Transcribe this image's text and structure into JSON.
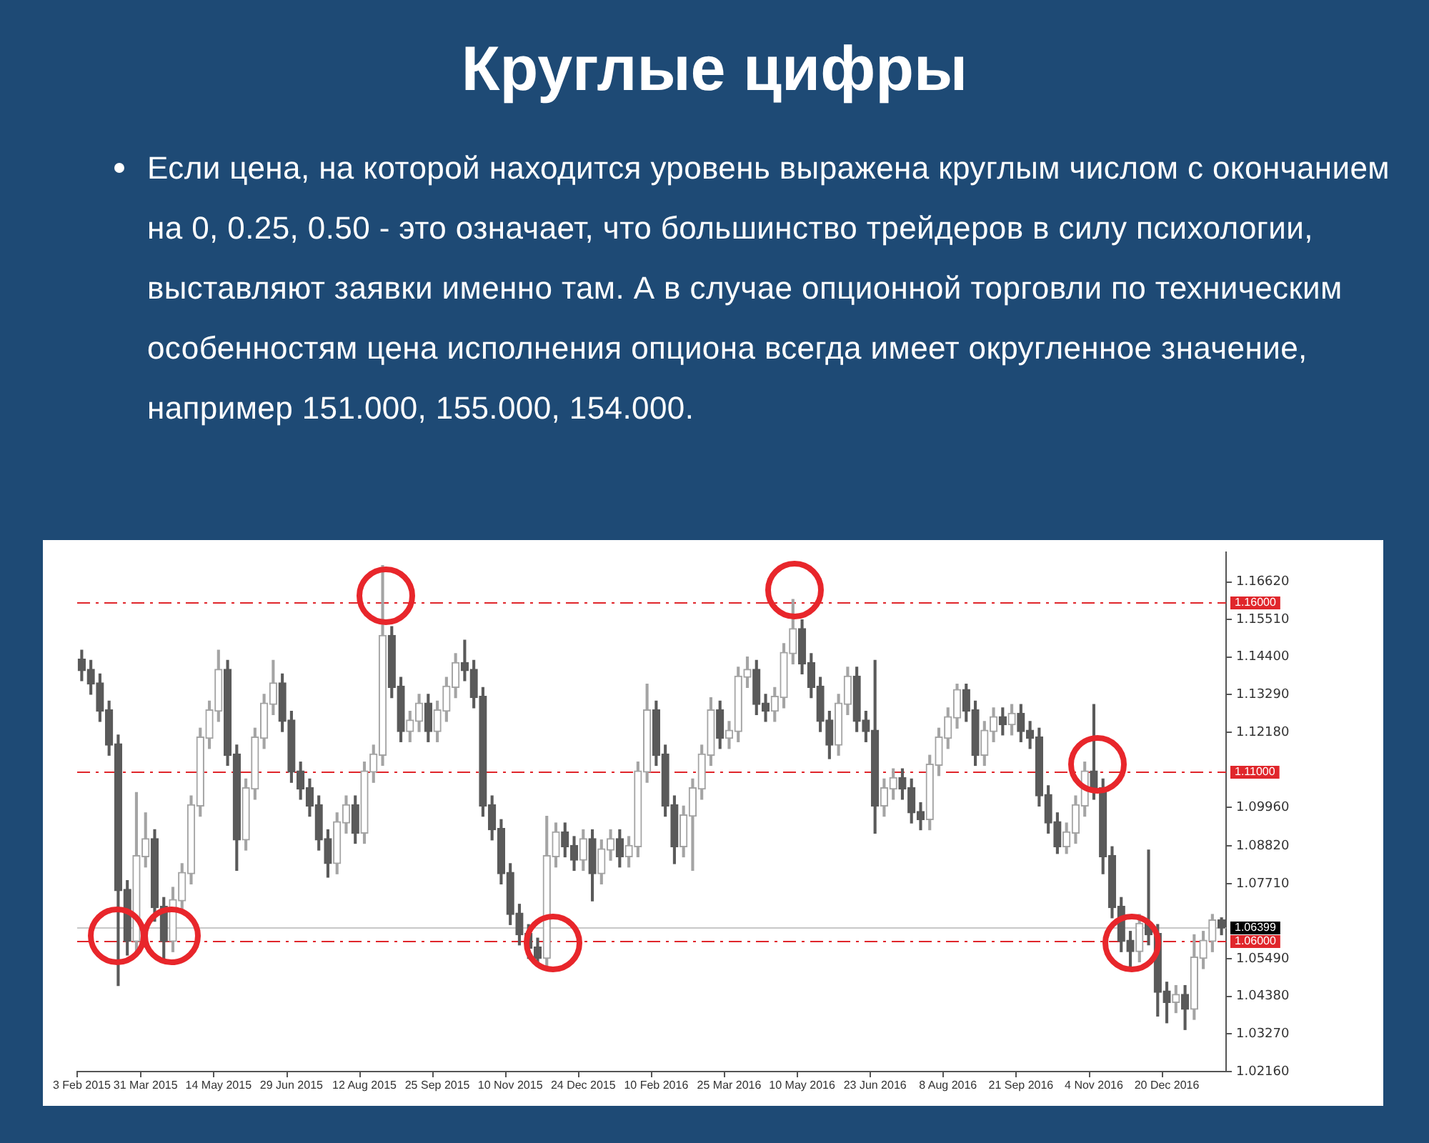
{
  "chart_data": {
    "type": "candlestick",
    "title": "Круглые цифры",
    "subtitle": "Если цена, на которой находится уровень выражена круглым числом с окончанием на 0, 0.25, 0.50 - это означает, что большинство трейдеров в силу психологии, выставляют заявки именно там. А в случае опционной торговли по техническим особенностям цена исполнения опциона всегда имеет округленное значение, например 151.000, 155.000, 154.000.",
    "colors": [
      "#5a5a5a",
      "#5a5a5a",
      "#5a5a5a",
      "#5a5a5a",
      "#5a5a5a",
      "#5a5a5a",
      "#a4a4a4",
      "#a4a4a4",
      "#5a5a5a",
      "#5a5a5a",
      "#a4a4a4",
      "#a4a4a4",
      "#a4a4a4",
      "#a4a4a4",
      "#a4a4a4",
      "#a4a4a4",
      "#5a5a5a",
      "#5a5a5a",
      "#a4a4a4",
      "#a4a4a4",
      "#a4a4a4",
      "#a4a4a4",
      "#5a5a5a",
      "#5a5a5a",
      "#5a5a5a",
      "#5a5a5a",
      "#5a5a5a",
      "#5a5a5a",
      "#a4a4a4",
      "#a4a4a4",
      "#5a5a5a",
      "#a4a4a4",
      "#a4a4a4",
      "#a4a4a4",
      "#5a5a5a",
      "#5a5a5a",
      "#a4a4a4",
      "#a4a4a4",
      "#5a5a5a",
      "#a4a4a4",
      "#a4a4a4",
      "#a4a4a4",
      "#5a5a5a",
      "#5a5a5a",
      "#5a5a5a",
      "#5a5a5a",
      "#5a5a5a",
      "#5a5a5a",
      "#5a5a5a",
      "#5a5a5a",
      "#5a5a5a",
      "#a4a4a4",
      "#a4a4a4",
      "#5a5a5a",
      "#5a5a5a",
      "#a4a4a4",
      "#5a5a5a",
      "#a4a4a4",
      "#a4a4a4",
      "#5a5a5a",
      "#a4a4a4",
      "#a4a4a4",
      "#a4a4a4",
      "#5a5a5a",
      "#5a5a5a",
      "#5a5a5a",
      "#a4a4a4",
      "#a4a4a4",
      "#a4a4a4",
      "#a4a4a4",
      "#5a5a5a",
      "#a4a4a4",
      "#a4a4a4",
      "#a4a4a4",
      "#5a5a5a",
      "#5a5a5a",
      "#a4a4a4",
      "#a4a4a4",
      "#a4a4a4",
      "#5a5a5a",
      "#5a5a5a",
      "#5a5a5a",
      "#5a5a5a",
      "#a4a4a4",
      "#a4a4a4",
      "#5a5a5a",
      "#5a5a5a",
      "#5a5a5a",
      "#a4a4a4",
      "#a4a4a4",
      "#5a5a5a",
      "#5a5a5a",
      "#5a5a5a",
      "#a4a4a4",
      "#a4a4a4",
      "#a4a4a4",
      "#a4a4a4",
      "#5a5a5a",
      "#5a5a5a",
      "#a4a4a4",
      "#a4a4a4",
      "#5a5a5a",
      "#a4a4a4",
      "#5a5a5a",
      "#5a5a5a",
      "#5a5a5a",
      "#5a5a5a",
      "#5a5a5a",
      "#a4a4a4",
      "#a4a4a4",
      "#a4a4a4",
      "#5a5a5a",
      "#5a5a5a",
      "#5a5a5a",
      "#5a5a5a",
      "#5a5a5a",
      "#a4a4a4",
      "#5a5a5a",
      "#5a5a5a",
      "#5a5a5a",
      "#a4a4a4",
      "#5a5a5a",
      "#a4a4a4",
      "#a4a4a4",
      "#a4a4a4",
      "#5a5a5a"
    ],
    "categories": [
      "3 Feb 2015",
      null,
      null,
      null,
      null,
      null,
      null,
      "31 Mar 2015",
      null,
      null,
      null,
      null,
      null,
      null,
      null,
      "14 May 2015",
      null,
      null,
      null,
      null,
      null,
      null,
      null,
      "29 Jun 2015",
      null,
      null,
      null,
      null,
      null,
      null,
      null,
      "12 Aug 2015",
      null,
      null,
      null,
      null,
      null,
      null,
      null,
      "25 Sep 2015",
      null,
      null,
      null,
      null,
      null,
      null,
      null,
      "10 Nov 2015",
      null,
      null,
      null,
      null,
      null,
      null,
      null,
      "24 Dec 2015",
      null,
      null,
      null,
      null,
      null,
      null,
      null,
      "10 Feb 2016",
      null,
      null,
      null,
      null,
      null,
      null,
      null,
      "25 Mar 2016",
      null,
      null,
      null,
      null,
      null,
      null,
      null,
      "10 May 2016",
      null,
      null,
      null,
      null,
      null,
      null,
      null,
      "23 Jun 2016",
      null,
      null,
      null,
      null,
      null,
      null,
      null,
      "8 Aug 2016",
      null,
      null,
      null,
      null,
      null,
      null,
      null,
      "21 Sep 2016",
      null,
      null,
      null,
      null,
      null,
      null,
      null,
      "4 Nov 2016",
      null,
      null,
      null,
      null,
      null,
      null,
      null,
      "20 Dec 2016",
      null,
      null,
      null,
      null,
      null,
      null
    ],
    "ohlc": [
      [
        1.143,
        1.146,
        1.137,
        1.14
      ],
      [
        1.14,
        1.143,
        1.133,
        1.136
      ],
      [
        1.136,
        1.139,
        1.125,
        1.128
      ],
      [
        1.128,
        1.131,
        1.115,
        1.118
      ],
      [
        1.118,
        1.121,
        1.047,
        1.075
      ],
      [
        1.075,
        1.078,
        1.056,
        1.06
      ],
      [
        1.06,
        1.104,
        1.057,
        1.085
      ],
      [
        1.085,
        1.098,
        1.082,
        1.09
      ],
      [
        1.09,
        1.093,
        1.066,
        1.07
      ],
      [
        1.07,
        1.073,
        1.054,
        1.06
      ],
      [
        1.06,
        1.076,
        1.057,
        1.072
      ],
      [
        1.072,
        1.083,
        1.069,
        1.08
      ],
      [
        1.08,
        1.103,
        1.077,
        1.1
      ],
      [
        1.1,
        1.123,
        1.097,
        1.12
      ],
      [
        1.12,
        1.131,
        1.117,
        1.128
      ],
      [
        1.128,
        1.146,
        1.125,
        1.14
      ],
      [
        1.14,
        1.143,
        1.112,
        1.115
      ],
      [
        1.115,
        1.118,
        1.081,
        1.09
      ],
      [
        1.09,
        1.108,
        1.087,
        1.105
      ],
      [
        1.105,
        1.123,
        1.102,
        1.12
      ],
      [
        1.12,
        1.133,
        1.117,
        1.13
      ],
      [
        1.13,
        1.143,
        1.127,
        1.136
      ],
      [
        1.136,
        1.139,
        1.122,
        1.125
      ],
      [
        1.125,
        1.128,
        1.107,
        1.11
      ],
      [
        1.11,
        1.113,
        1.102,
        1.105
      ],
      [
        1.105,
        1.108,
        1.097,
        1.1
      ],
      [
        1.1,
        1.103,
        1.087,
        1.09
      ],
      [
        1.09,
        1.093,
        1.079,
        1.083
      ],
      [
        1.083,
        1.098,
        1.08,
        1.095
      ],
      [
        1.095,
        1.103,
        1.092,
        1.1
      ],
      [
        1.1,
        1.103,
        1.089,
        1.092
      ],
      [
        1.092,
        1.113,
        1.089,
        1.11
      ],
      [
        1.11,
        1.118,
        1.107,
        1.115
      ],
      [
        1.115,
        1.171,
        1.112,
        1.15
      ],
      [
        1.15,
        1.153,
        1.132,
        1.135
      ],
      [
        1.135,
        1.138,
        1.119,
        1.122
      ],
      [
        1.122,
        1.128,
        1.119,
        1.125
      ],
      [
        1.125,
        1.133,
        1.122,
        1.13
      ],
      [
        1.13,
        1.133,
        1.119,
        1.122
      ],
      [
        1.122,
        1.131,
        1.119,
        1.128
      ],
      [
        1.128,
        1.138,
        1.125,
        1.135
      ],
      [
        1.135,
        1.145,
        1.132,
        1.142
      ],
      [
        1.142,
        1.149,
        1.137,
        1.14
      ],
      [
        1.14,
        1.143,
        1.129,
        1.132
      ],
      [
        1.132,
        1.135,
        1.097,
        1.1
      ],
      [
        1.1,
        1.103,
        1.09,
        1.093
      ],
      [
        1.093,
        1.096,
        1.077,
        1.08
      ],
      [
        1.08,
        1.083,
        1.065,
        1.068
      ],
      [
        1.068,
        1.071,
        1.059,
        1.062
      ],
      [
        1.062,
        1.065,
        1.055,
        1.058
      ],
      [
        1.058,
        1.061,
        1.053,
        1.055
      ],
      [
        1.055,
        1.097,
        1.052,
        1.085
      ],
      [
        1.085,
        1.095,
        1.082,
        1.092
      ],
      [
        1.092,
        1.095,
        1.085,
        1.088
      ],
      [
        1.088,
        1.091,
        1.081,
        1.084
      ],
      [
        1.084,
        1.093,
        1.081,
        1.09
      ],
      [
        1.09,
        1.093,
        1.072,
        1.08
      ],
      [
        1.08,
        1.09,
        1.077,
        1.087
      ],
      [
        1.087,
        1.093,
        1.084,
        1.09
      ],
      [
        1.09,
        1.093,
        1.082,
        1.085
      ],
      [
        1.085,
        1.091,
        1.082,
        1.088
      ],
      [
        1.088,
        1.113,
        1.085,
        1.11
      ],
      [
        1.11,
        1.136,
        1.107,
        1.128
      ],
      [
        1.128,
        1.131,
        1.112,
        1.115
      ],
      [
        1.115,
        1.118,
        1.097,
        1.1
      ],
      [
        1.1,
        1.103,
        1.083,
        1.088
      ],
      [
        1.088,
        1.1,
        1.085,
        1.097
      ],
      [
        1.097,
        1.108,
        1.081,
        1.105
      ],
      [
        1.105,
        1.118,
        1.102,
        1.115
      ],
      [
        1.115,
        1.132,
        1.112,
        1.128
      ],
      [
        1.128,
        1.131,
        1.117,
        1.12
      ],
      [
        1.12,
        1.125,
        1.117,
        1.122
      ],
      [
        1.122,
        1.141,
        1.119,
        1.138
      ],
      [
        1.138,
        1.144,
        1.135,
        1.14
      ],
      [
        1.14,
        1.143,
        1.127,
        1.13
      ],
      [
        1.13,
        1.133,
        1.125,
        1.128
      ],
      [
        1.128,
        1.135,
        1.125,
        1.132
      ],
      [
        1.132,
        1.148,
        1.129,
        1.145
      ],
      [
        1.145,
        1.161,
        1.142,
        1.152
      ],
      [
        1.152,
        1.155,
        1.139,
        1.142
      ],
      [
        1.142,
        1.145,
        1.132,
        1.135
      ],
      [
        1.135,
        1.138,
        1.122,
        1.125
      ],
      [
        1.125,
        1.128,
        1.114,
        1.118
      ],
      [
        1.118,
        1.133,
        1.115,
        1.13
      ],
      [
        1.13,
        1.141,
        1.127,
        1.138
      ],
      [
        1.138,
        1.141,
        1.122,
        1.125
      ],
      [
        1.125,
        1.128,
        1.119,
        1.122
      ],
      [
        1.122,
        1.143,
        1.092,
        1.1
      ],
      [
        1.1,
        1.108,
        1.097,
        1.105
      ],
      [
        1.105,
        1.111,
        1.102,
        1.108
      ],
      [
        1.108,
        1.111,
        1.102,
        1.105
      ],
      [
        1.105,
        1.108,
        1.095,
        1.098
      ],
      [
        1.098,
        1.101,
        1.093,
        1.096
      ],
      [
        1.096,
        1.115,
        1.093,
        1.112
      ],
      [
        1.112,
        1.123,
        1.109,
        1.12
      ],
      [
        1.12,
        1.129,
        1.117,
        1.126
      ],
      [
        1.126,
        1.136,
        1.123,
        1.134
      ],
      [
        1.134,
        1.136,
        1.125,
        1.128
      ],
      [
        1.128,
        1.131,
        1.112,
        1.115
      ],
      [
        1.115,
        1.125,
        1.112,
        1.122
      ],
      [
        1.122,
        1.129,
        1.119,
        1.126
      ],
      [
        1.126,
        1.129,
        1.121,
        1.124
      ],
      [
        1.124,
        1.13,
        1.121,
        1.127
      ],
      [
        1.127,
        1.13,
        1.119,
        1.122
      ],
      [
        1.122,
        1.125,
        1.117,
        1.12
      ],
      [
        1.12,
        1.123,
        1.1,
        1.103
      ],
      [
        1.103,
        1.106,
        1.092,
        1.095
      ],
      [
        1.095,
        1.098,
        1.086,
        1.088
      ],
      [
        1.088,
        1.095,
        1.086,
        1.092
      ],
      [
        1.092,
        1.103,
        1.089,
        1.1
      ],
      [
        1.1,
        1.113,
        1.097,
        1.11
      ],
      [
        1.11,
        1.13,
        1.102,
        1.105
      ],
      [
        1.105,
        1.108,
        1.08,
        1.085
      ],
      [
        1.085,
        1.088,
        1.067,
        1.07
      ],
      [
        1.07,
        1.073,
        1.057,
        1.06
      ],
      [
        1.06,
        1.063,
        1.052,
        1.057
      ],
      [
        1.057,
        1.068,
        1.054,
        1.065
      ],
      [
        1.065,
        1.087,
        1.059,
        1.062
      ],
      [
        1.062,
        1.065,
        1.038,
        1.045
      ],
      [
        1.045,
        1.048,
        1.036,
        1.042
      ],
      [
        1.042,
        1.047,
        1.039,
        1.044
      ],
      [
        1.044,
        1.047,
        1.034,
        1.04
      ],
      [
        1.04,
        1.062,
        1.037,
        1.055
      ],
      [
        1.055,
        1.063,
        1.052,
        1.06
      ],
      [
        1.06,
        1.068,
        1.057,
        1.066
      ],
      [
        1.066,
        1.067,
        1.062,
        1.06399
      ]
    ],
    "ylim": [
      1.0216,
      1.175
    ],
    "yticks": [
      {
        "value": 1.0216,
        "label": "1.02160"
      },
      {
        "value": 1.0327,
        "label": "1.03270"
      },
      {
        "value": 1.0438,
        "label": "1.04380"
      },
      {
        "value": 1.0549,
        "label": "1.05490"
      },
      {
        "value": 1.0771,
        "label": "1.07710"
      },
      {
        "value": 1.0882,
        "label": "1.08820"
      },
      {
        "value": 1.0996,
        "label": "1.09960"
      },
      {
        "value": 1.1218,
        "label": "1.12180"
      },
      {
        "value": 1.1329,
        "label": "1.13290"
      },
      {
        "value": 1.144,
        "label": "1.14400"
      },
      {
        "value": 1.1551,
        "label": "1.15510"
      },
      {
        "value": 1.1662,
        "label": "1.16620"
      }
    ],
    "ref_lines": [
      {
        "axis": "y",
        "value": 1.16,
        "label": "1.16000",
        "color": "#e0262b",
        "line_style": "dashed"
      },
      {
        "axis": "y",
        "value": 1.11,
        "label": "1.11000",
        "color": "#e0262b",
        "line_style": "dashed"
      },
      {
        "axis": "y",
        "value": 1.06,
        "label": "1.06000",
        "color": "#e0262b",
        "line_style": "dashed"
      },
      {
        "axis": "y",
        "value": 1.06399,
        "label": "1.06399",
        "color": "#c8c8c8",
        "line_style": "solid"
      }
    ],
    "grid": false,
    "legend": false
  }
}
